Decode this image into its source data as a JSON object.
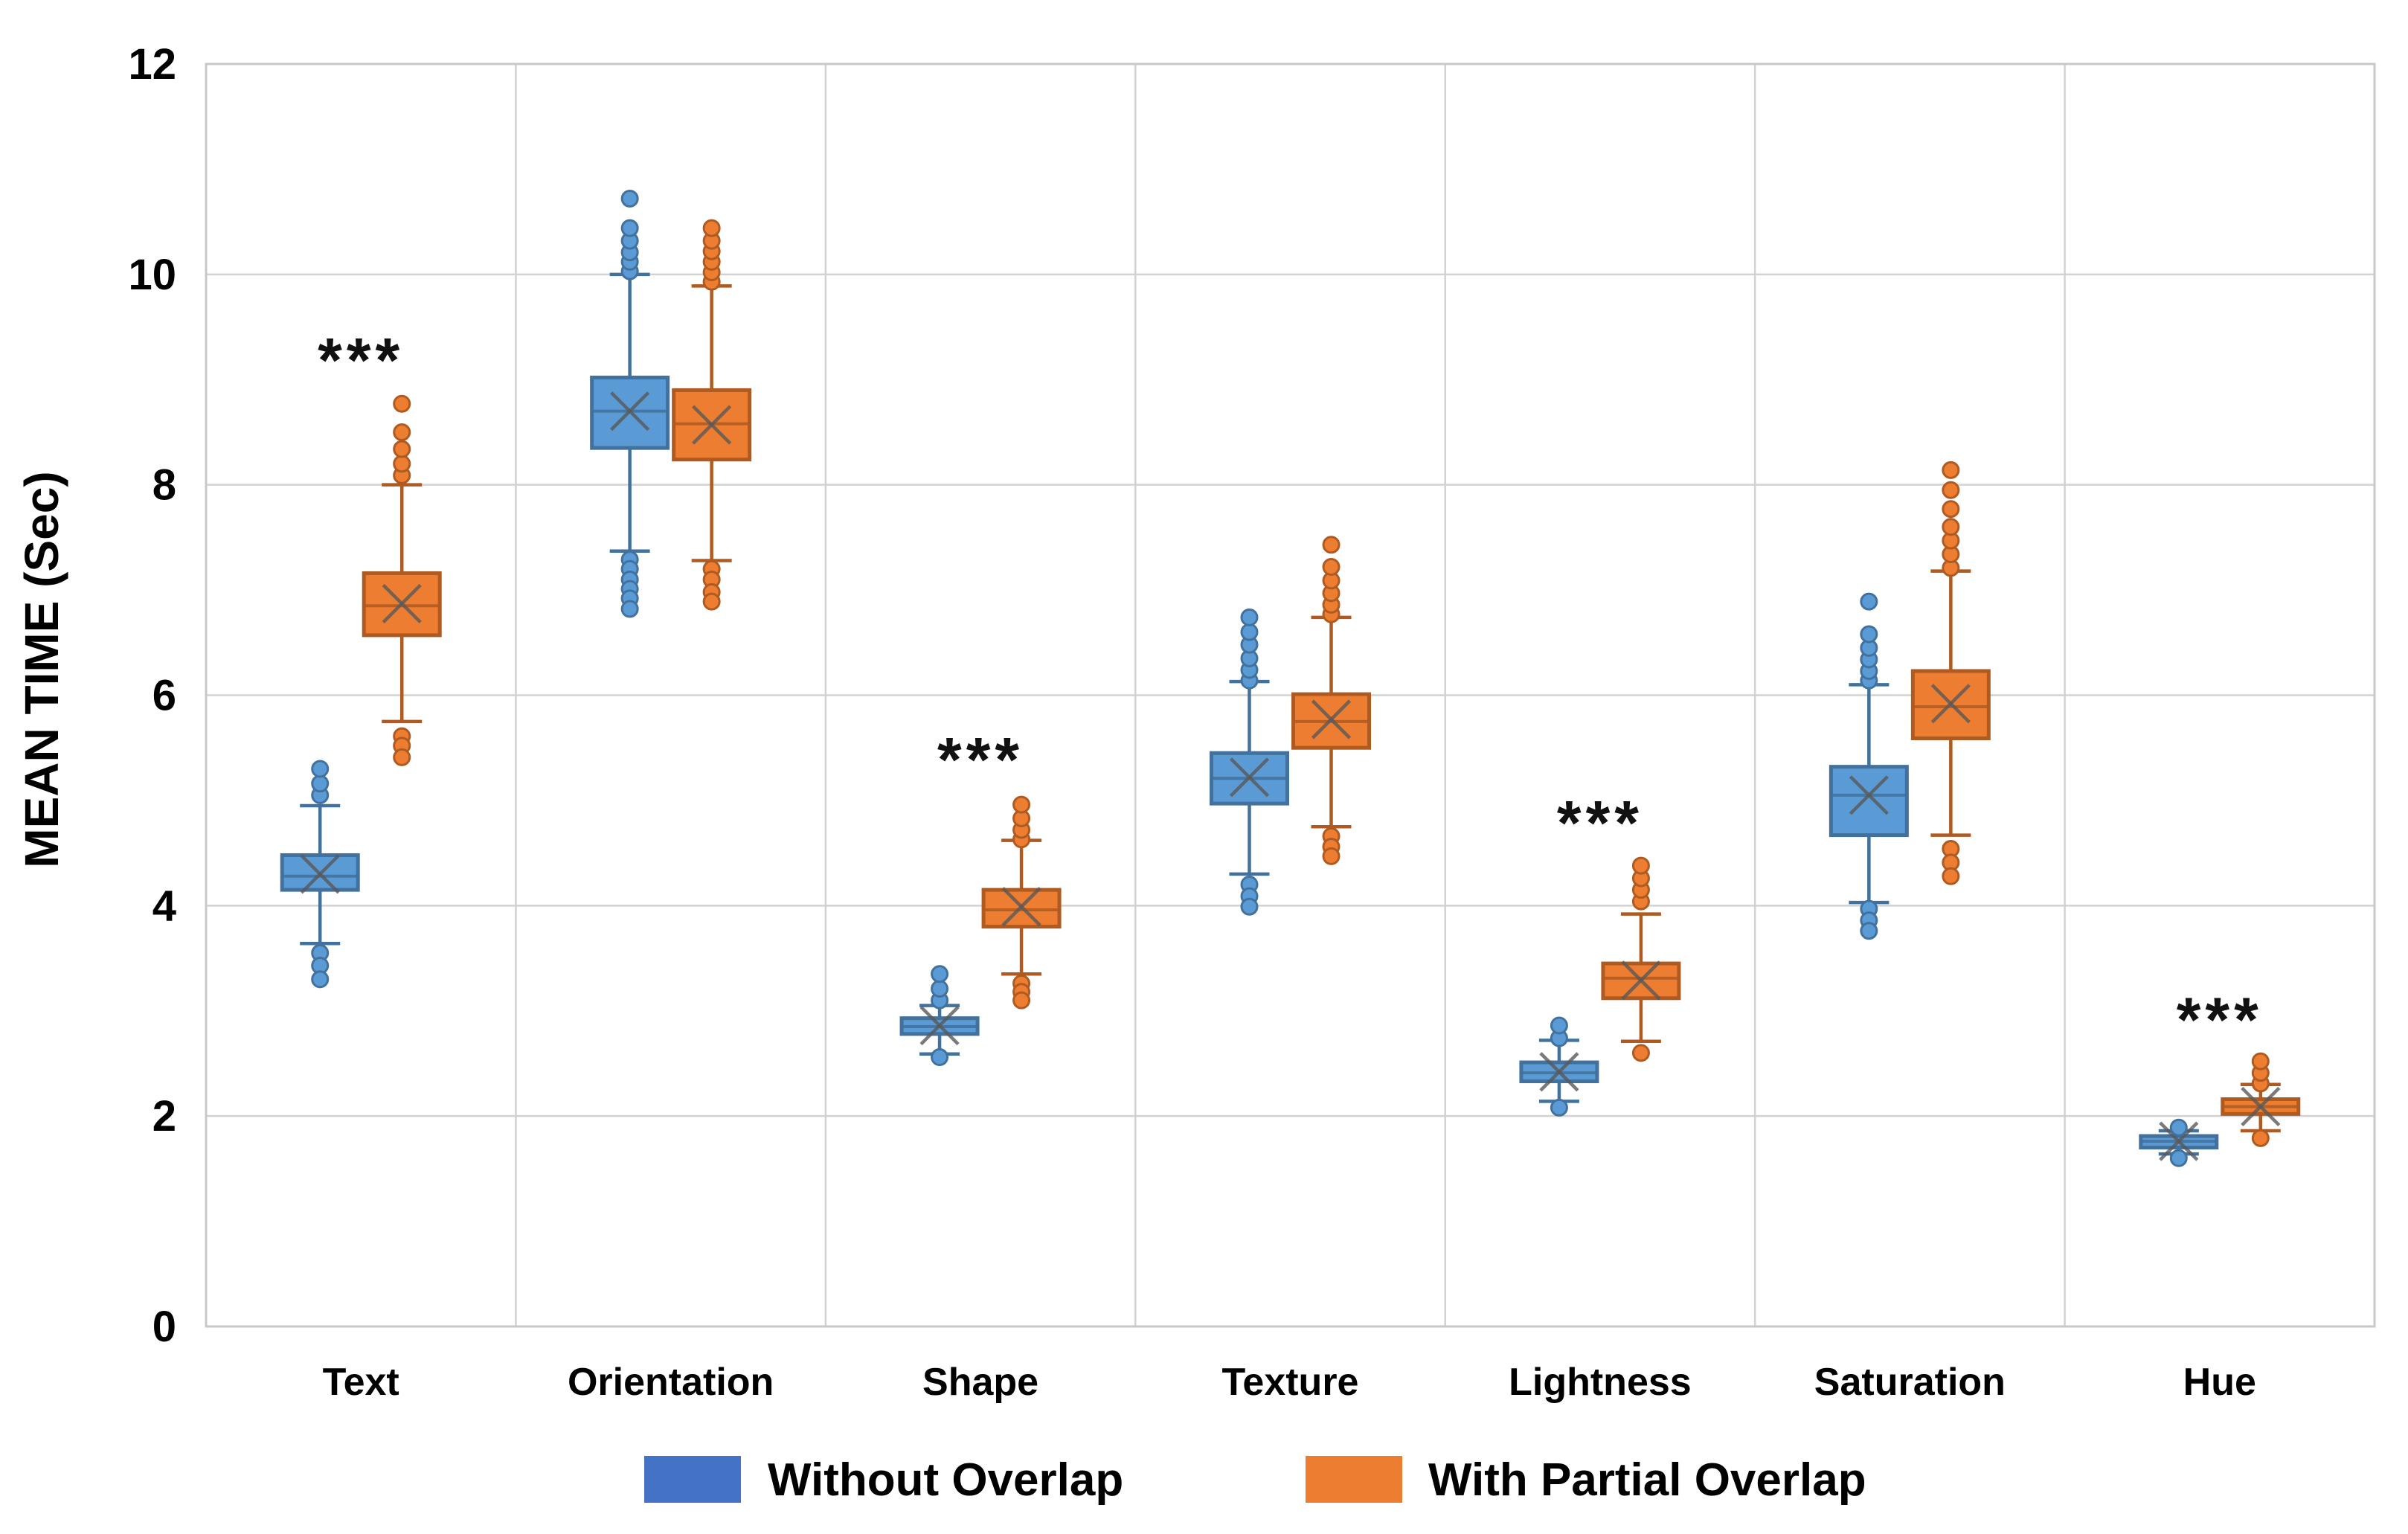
{
  "colors": {
    "blue_fill": "#5B9BD5",
    "blue_stroke": "#41719C",
    "orange_fill": "#ED7D31",
    "orange_stroke": "#AE5A21",
    "legend_blue": "#4472C4",
    "legend_orange": "#ED7D31",
    "gridline": "#D2D2D2",
    "plot_border": "#C8C8C8",
    "text": "#000000",
    "mean_marker": "#595959"
  },
  "axes": {
    "y_label": "MEAN TIME (Sec)",
    "y_ticks": [
      "0",
      "2",
      "4",
      "6",
      "8",
      "10",
      "12"
    ]
  },
  "legend": {
    "items": [
      {
        "label": "Without Overlap",
        "color_key": "legend_blue"
      },
      {
        "label": "With Partial Overlap",
        "color_key": "legend_orange"
      }
    ]
  },
  "chart_data": {
    "type": "boxplot",
    "title": "",
    "xlabel": "",
    "ylabel": "MEAN TIME (Sec)",
    "ylim": [
      0,
      12
    ],
    "y_tick_values": [
      0,
      2,
      4,
      6,
      8,
      10,
      12
    ],
    "grid": "on",
    "legend_position": "bottom",
    "categories": [
      "Text",
      "Orientation",
      "Shape",
      "Texture",
      "Lightness",
      "Saturation",
      "Hue"
    ],
    "series": [
      {
        "name": "Without Overlap",
        "color": "blue",
        "boxes": [
          {
            "category": "Text",
            "whisker_low": 3.64,
            "q1": 4.15,
            "median": 4.28,
            "q3": 4.48,
            "whisker_high": 4.95,
            "mean": 4.3,
            "outliers_high": [
              5.05,
              5.16,
              5.3
            ],
            "outliers_low": [
              3.55,
              3.43,
              3.3
            ]
          },
          {
            "category": "Orientation",
            "whisker_low": 7.37,
            "q1": 8.35,
            "median": 8.7,
            "q3": 9.02,
            "whisker_high": 10.0,
            "mean": 8.7,
            "outliers_high": [
              10.03,
              10.12,
              10.21,
              10.32,
              10.44,
              10.72
            ],
            "outliers_low": [
              7.29,
              7.2,
              7.1,
              7.01,
              6.92,
              6.82
            ]
          },
          {
            "category": "Shape",
            "whisker_low": 2.59,
            "q1": 2.78,
            "median": 2.85,
            "q3": 2.93,
            "whisker_high": 3.05,
            "mean": 2.86,
            "outliers_high": [
              3.1,
              3.21,
              3.35
            ],
            "outliers_low": [
              2.56
            ]
          },
          {
            "category": "Texture",
            "whisker_low": 4.3,
            "q1": 4.97,
            "median": 5.21,
            "q3": 5.45,
            "whisker_high": 6.13,
            "mean": 5.22,
            "outliers_high": [
              6.14,
              6.24,
              6.35,
              6.48,
              6.6,
              6.74
            ],
            "outliers_low": [
              4.2,
              4.09,
              3.99
            ]
          },
          {
            "category": "Lightness",
            "whisker_low": 2.14,
            "q1": 2.33,
            "median": 2.41,
            "q3": 2.51,
            "whisker_high": 2.72,
            "mean": 2.42,
            "outliers_high": [
              2.74,
              2.86
            ],
            "outliers_low": [
              2.08
            ]
          },
          {
            "category": "Saturation",
            "whisker_low": 4.03,
            "q1": 4.67,
            "median": 5.05,
            "q3": 5.32,
            "whisker_high": 6.1,
            "mean": 5.05,
            "outliers_high": [
              6.14,
              6.23,
              6.34,
              6.45,
              6.58,
              6.89
            ],
            "outliers_low": [
              3.97,
              3.86,
              3.76
            ]
          },
          {
            "category": "Hue",
            "whisker_low": 1.64,
            "q1": 1.7,
            "median": 1.76,
            "q3": 1.81,
            "whisker_high": 1.86,
            "mean": 1.76,
            "outliers_high": [
              1.89
            ],
            "outliers_low": [
              1.6
            ]
          }
        ]
      },
      {
        "name": "With Partial Overlap",
        "color": "orange",
        "boxes": [
          {
            "category": "Text",
            "whisker_low": 5.75,
            "q1": 6.57,
            "median": 6.85,
            "q3": 7.16,
            "whisker_high": 8.0,
            "mean": 6.87,
            "outliers_high": [
              8.09,
              8.2,
              8.34,
              8.5,
              8.77
            ],
            "outliers_low": [
              5.61,
              5.52,
              5.41
            ]
          },
          {
            "category": "Orientation",
            "whisker_low": 7.28,
            "q1": 8.24,
            "median": 8.58,
            "q3": 8.9,
            "whisker_high": 9.89,
            "mean": 8.57,
            "outliers_high": [
              9.93,
              10.02,
              10.12,
              10.22,
              10.32,
              10.44
            ],
            "outliers_low": [
              7.2,
              7.1,
              6.98,
              6.89
            ]
          },
          {
            "category": "Shape",
            "whisker_low": 3.35,
            "q1": 3.8,
            "median": 3.96,
            "q3": 4.15,
            "whisker_high": 4.62,
            "mean": 3.99,
            "outliers_high": [
              4.63,
              4.72,
              4.83,
              4.96
            ],
            "outliers_low": [
              3.26,
              3.18,
              3.1
            ]
          },
          {
            "category": "Texture",
            "whisker_low": 4.75,
            "q1": 5.5,
            "median": 5.75,
            "q3": 6.01,
            "whisker_high": 6.74,
            "mean": 5.77,
            "outliers_high": [
              6.77,
              6.86,
              6.97,
              7.09,
              7.22,
              7.43
            ],
            "outliers_low": [
              4.66,
              4.56,
              4.47
            ]
          },
          {
            "category": "Lightness",
            "whisker_low": 2.71,
            "q1": 3.12,
            "median": 3.31,
            "q3": 3.45,
            "whisker_high": 3.92,
            "mean": 3.29,
            "outliers_high": [
              4.04,
              4.15,
              4.26,
              4.38
            ],
            "outliers_low": [
              2.6
            ]
          },
          {
            "category": "Saturation",
            "whisker_low": 4.67,
            "q1": 5.59,
            "median": 5.89,
            "q3": 6.23,
            "whisker_high": 7.18,
            "mean": 5.92,
            "outliers_high": [
              7.21,
              7.34,
              7.47,
              7.6,
              7.77,
              7.95,
              8.14
            ],
            "outliers_low": [
              4.54,
              4.41,
              4.28
            ]
          },
          {
            "category": "Hue",
            "whisker_low": 1.86,
            "q1": 2.02,
            "median": 2.09,
            "q3": 2.16,
            "whisker_high": 2.3,
            "mean": 2.09,
            "outliers_high": [
              2.31,
              2.41,
              2.52
            ],
            "outliers_low": [
              1.79
            ]
          }
        ]
      }
    ],
    "significance_annotations": [
      {
        "category": "Text",
        "label": "***",
        "y": 9.35
      },
      {
        "category": "Shape",
        "label": "***",
        "y": 5.55
      },
      {
        "category": "Lightness",
        "label": "***",
        "y": 4.95
      },
      {
        "category": "Hue",
        "label": "***",
        "y": 3.08
      }
    ]
  }
}
